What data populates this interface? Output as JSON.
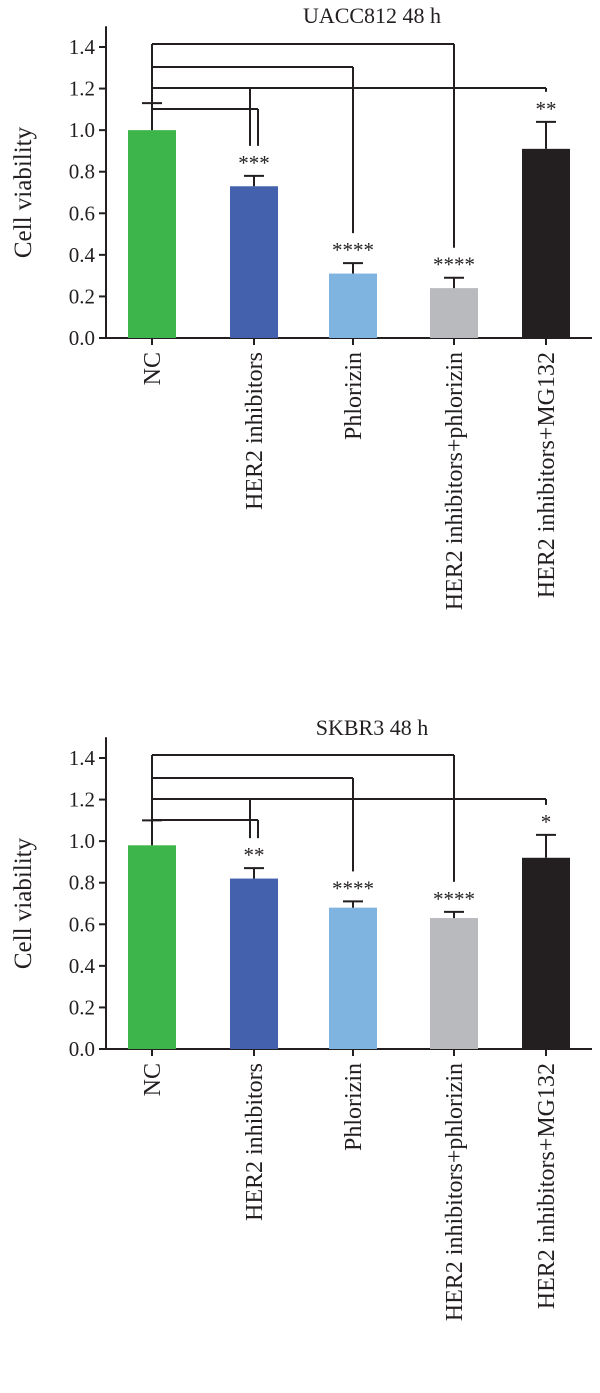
{
  "chart_data": [
    {
      "type": "bar",
      "title": "UACC812 48 h",
      "ylabel": "Cell viability",
      "xlabel": "",
      "ylim": [
        0,
        1.5
      ],
      "yticks": [
        "0.0",
        "0.2",
        "0.4",
        "0.6",
        "0.8",
        "1.0",
        "1.2",
        "1.4"
      ],
      "categories": [
        "NC",
        "HER2 inhibitors",
        "Phlorizin",
        "HER2 inhibitors+phlorizin",
        "HER2 inhibitors+MG132"
      ],
      "values": [
        1.0,
        0.73,
        0.31,
        0.24,
        0.91
      ],
      "errors": [
        0.13,
        0.05,
        0.05,
        0.05,
        0.13
      ],
      "significance": [
        "",
        "***",
        "****",
        "****",
        "**"
      ],
      "colors": [
        "#3db54a",
        "#4361ad",
        "#7fb3e0",
        "#b9babe",
        "#231f20"
      ],
      "grid": false,
      "legend": "none"
    },
    {
      "type": "bar",
      "title": "SKBR3 48 h",
      "ylabel": "Cell viability",
      "xlabel": "",
      "ylim": [
        0,
        1.5
      ],
      "yticks": [
        "0.0",
        "0.2",
        "0.4",
        "0.6",
        "0.8",
        "1.0",
        "1.2",
        "1.4"
      ],
      "categories": [
        "NC",
        "HER2 inhibitors",
        "Phlorizin",
        "HER2 inhibitors+phlorizin",
        "HER2 inhibitors+MG132"
      ],
      "values": [
        0.98,
        0.82,
        0.68,
        0.63,
        0.92
      ],
      "errors": [
        0.12,
        0.05,
        0.03,
        0.03,
        0.11
      ],
      "significance": [
        "",
        "**",
        "****",
        "****",
        "*"
      ],
      "colors": [
        "#3db54a",
        "#4361ad",
        "#7fb3e0",
        "#b9babe",
        "#231f20"
      ],
      "grid": false,
      "legend": "none"
    }
  ]
}
